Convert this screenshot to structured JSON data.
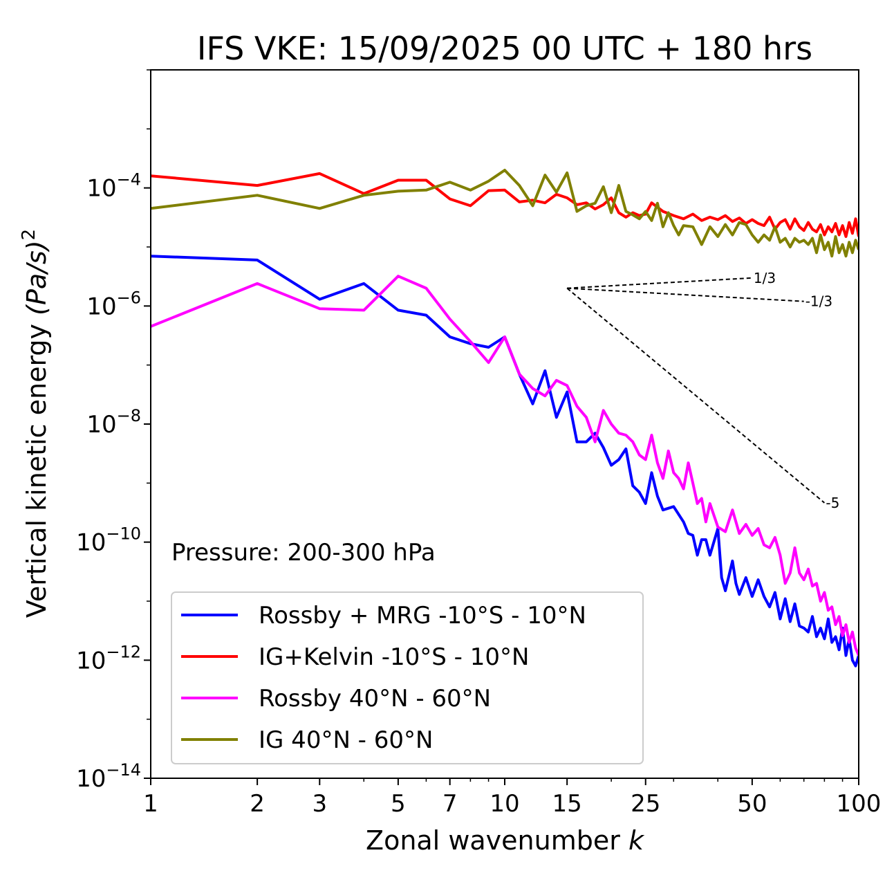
{
  "chart_data": {
    "type": "line",
    "title": "IFS VKE: 15/09/2025 00 UTC + 180 hrs",
    "xlabel_text": "Zonal wavenumber",
    "xlabel_var": "k",
    "ylabel_text": "Vertical kinetic energy",
    "ylabel_units": "(Pa/s)",
    "ylabel_exp": "2",
    "x_scale": "log",
    "y_scale": "log",
    "xlim": [
      1,
      100
    ],
    "ylim": [
      1e-14,
      0.01
    ],
    "x_ticks": [
      1,
      2,
      3,
      5,
      7,
      10,
      15,
      25,
      50,
      100
    ],
    "x_tick_labels": [
      "1",
      "2",
      "3",
      "5",
      "7",
      "10",
      "15",
      "25",
      "50",
      "100"
    ],
    "y_ticks": [
      {
        "value": 0.0001,
        "base": "10",
        "exp": "−4"
      },
      {
        "value": 1e-06,
        "base": "10",
        "exp": "−6"
      },
      {
        "value": 1e-08,
        "base": "10",
        "exp": "−8"
      },
      {
        "value": 1e-10,
        "base": "10",
        "exp": "−10"
      },
      {
        "value": 1e-12,
        "base": "10",
        "exp": "−12"
      },
      {
        "value": 1e-14,
        "base": "10",
        "exp": "−14"
      }
    ],
    "annotation": "Pressure: 200-300 hPa",
    "legend_position": "lower-left",
    "series": [
      {
        "name": "Rossby + MRG -10°S - 10°N",
        "color": "#0000ff",
        "points": [
          [
            1,
            7e-06
          ],
          [
            2,
            6e-06
          ],
          [
            3,
            1.3e-06
          ],
          [
            4,
            2.4e-06
          ],
          [
            5,
            8.5e-07
          ],
          [
            6,
            7e-07
          ],
          [
            7,
            3e-07
          ],
          [
            8,
            2.3e-07
          ],
          [
            9,
            2e-07
          ],
          [
            10,
            3e-07
          ],
          [
            11,
            7e-08
          ],
          [
            12,
            2.2e-08
          ],
          [
            13,
            8e-08
          ],
          [
            14,
            1.3e-08
          ],
          [
            15,
            3.5e-08
          ],
          [
            16,
            5e-09
          ],
          [
            17,
            5e-09
          ],
          [
            18,
            7e-09
          ],
          [
            19,
            4e-09
          ],
          [
            20,
            2e-09
          ],
          [
            21,
            2.5e-09
          ],
          [
            22,
            3.8e-09
          ],
          [
            23,
            9e-10
          ],
          [
            24,
            7e-10
          ],
          [
            25,
            4.5e-10
          ],
          [
            26,
            1.5e-09
          ],
          [
            27,
            6e-10
          ],
          [
            28,
            3.5e-10
          ],
          [
            30,
            4e-10
          ],
          [
            32,
            2.2e-10
          ],
          [
            33,
            1.4e-10
          ],
          [
            34,
            1.3e-10
          ],
          [
            35,
            6e-11
          ],
          [
            36,
            1.1e-10
          ],
          [
            37,
            1.1e-10
          ],
          [
            38,
            6e-11
          ],
          [
            40,
            1.7e-10
          ],
          [
            41,
            2.5e-11
          ],
          [
            42,
            1.5e-11
          ],
          [
            44,
            4.8e-11
          ],
          [
            45,
            2e-11
          ],
          [
            46,
            1.3e-11
          ],
          [
            48,
            2.5e-11
          ],
          [
            50,
            1.2e-11
          ],
          [
            52,
            2.3e-11
          ],
          [
            54,
            1.2e-11
          ],
          [
            56,
            8e-12
          ],
          [
            58,
            1.4e-11
          ],
          [
            60,
            5e-12
          ],
          [
            62,
            1.1e-11
          ],
          [
            64,
            4.5e-12
          ],
          [
            66,
            9e-12
          ],
          [
            68,
            3.8e-12
          ],
          [
            70,
            3.5e-12
          ],
          [
            72,
            3e-12
          ],
          [
            74,
            5.5e-12
          ],
          [
            76,
            2.5e-12
          ],
          [
            78,
            3.5e-12
          ],
          [
            80,
            2.3e-12
          ],
          [
            82,
            5e-12
          ],
          [
            84,
            2e-12
          ],
          [
            86,
            2.5e-12
          ],
          [
            88,
            1.5e-12
          ],
          [
            90,
            3.5e-12
          ],
          [
            92,
            1.2e-12
          ],
          [
            94,
            2.3e-12
          ],
          [
            96,
            1e-12
          ],
          [
            98,
            8e-13
          ],
          [
            100,
            1.2e-12
          ]
        ]
      },
      {
        "name": "IG+Kelvin -10°S - 10°N",
        "color": "#ff0000",
        "points": [
          [
            1,
            0.00016
          ],
          [
            2,
            0.00011
          ],
          [
            3,
            0.000175
          ],
          [
            4,
            8e-05
          ],
          [
            5,
            0.000135
          ],
          [
            6,
            0.000135
          ],
          [
            7,
            6.5e-05
          ],
          [
            8,
            5e-05
          ],
          [
            9,
            9e-05
          ],
          [
            10,
            9.2e-05
          ],
          [
            11,
            5.8e-05
          ],
          [
            12,
            6.2e-05
          ],
          [
            13,
            5.6e-05
          ],
          [
            14,
            7.8e-05
          ],
          [
            15,
            6.8e-05
          ],
          [
            16,
            5.2e-05
          ],
          [
            17,
            5.6e-05
          ],
          [
            18,
            4.4e-05
          ],
          [
            19,
            5.2e-05
          ],
          [
            20,
            6.8e-05
          ],
          [
            21,
            3.8e-05
          ],
          [
            22,
            3.2e-05
          ],
          [
            23,
            3.8e-05
          ],
          [
            24,
            3.4e-05
          ],
          [
            25,
            3.6e-05
          ],
          [
            26,
            5.6e-05
          ],
          [
            28,
            4e-05
          ],
          [
            30,
            3.4e-05
          ],
          [
            32,
            3e-05
          ],
          [
            34,
            3.6e-05
          ],
          [
            36,
            2.8e-05
          ],
          [
            38,
            3.2e-05
          ],
          [
            40,
            2.9e-05
          ],
          [
            42,
            3.4e-05
          ],
          [
            44,
            2.7e-05
          ],
          [
            46,
            3.1e-05
          ],
          [
            48,
            2.5e-05
          ],
          [
            50,
            2.9e-05
          ],
          [
            52,
            2.5e-05
          ],
          [
            54,
            2.3e-05
          ],
          [
            56,
            3.2e-05
          ],
          [
            58,
            2e-05
          ],
          [
            60,
            2.6e-05
          ],
          [
            62,
            2.9e-05
          ],
          [
            64,
            2e-05
          ],
          [
            66,
            3e-05
          ],
          [
            68,
            2.2e-05
          ],
          [
            70,
            1.9e-05
          ],
          [
            72,
            2.6e-05
          ],
          [
            74,
            2e-05
          ],
          [
            76,
            1.8e-05
          ],
          [
            78,
            2.4e-05
          ],
          [
            80,
            1.6e-05
          ],
          [
            82,
            2.2e-05
          ],
          [
            84,
            1.8e-05
          ],
          [
            86,
            2.5e-05
          ],
          [
            88,
            1.6e-05
          ],
          [
            90,
            2.3e-05
          ],
          [
            92,
            1.5e-05
          ],
          [
            94,
            2.6e-05
          ],
          [
            96,
            1.7e-05
          ],
          [
            98,
            3e-05
          ],
          [
            100,
            1.5e-05
          ]
        ]
      },
      {
        "name": "Rossby 40°N - 60°N",
        "color": "#ff00ff",
        "points": [
          [
            1,
            4.5e-07
          ],
          [
            2,
            2.4e-06
          ],
          [
            3,
            9e-07
          ],
          [
            4,
            8.5e-07
          ],
          [
            5,
            3.2e-06
          ],
          [
            6,
            2e-06
          ],
          [
            7,
            6e-07
          ],
          [
            8,
            2.5e-07
          ],
          [
            9,
            1.1e-07
          ],
          [
            10,
            3e-07
          ],
          [
            11,
            7e-08
          ],
          [
            12,
            4e-08
          ],
          [
            13,
            3e-08
          ],
          [
            14,
            5.5e-08
          ],
          [
            15,
            4.5e-08
          ],
          [
            16,
            2e-08
          ],
          [
            17,
            1.3e-08
          ],
          [
            18,
            5e-09
          ],
          [
            19,
            1.7e-08
          ],
          [
            20,
            1e-08
          ],
          [
            21,
            7e-09
          ],
          [
            22,
            6.5e-09
          ],
          [
            23,
            5e-09
          ],
          [
            24,
            3e-09
          ],
          [
            25,
            2.5e-09
          ],
          [
            26,
            6.5e-09
          ],
          [
            27,
            2.2e-09
          ],
          [
            28,
            1.2e-09
          ],
          [
            29,
            3.5e-09
          ],
          [
            30,
            1.5e-09
          ],
          [
            31,
            1.2e-09
          ],
          [
            32,
            8e-10
          ],
          [
            33,
            2.2e-09
          ],
          [
            34,
            1e-09
          ],
          [
            35,
            4.5e-10
          ],
          [
            36,
            5.5e-10
          ],
          [
            37,
            2.2e-10
          ],
          [
            38,
            4.5e-10
          ],
          [
            40,
            1.8e-10
          ],
          [
            42,
            1.5e-10
          ],
          [
            44,
            3.5e-10
          ],
          [
            46,
            1.4e-10
          ],
          [
            48,
            2e-10
          ],
          [
            50,
            1.3e-10
          ],
          [
            52,
            1.7e-10
          ],
          [
            54,
            9e-11
          ],
          [
            56,
            8e-11
          ],
          [
            58,
            1.2e-10
          ],
          [
            60,
            6e-11
          ],
          [
            62,
            2e-11
          ],
          [
            64,
            3e-11
          ],
          [
            66,
            8e-11
          ],
          [
            68,
            3e-11
          ],
          [
            70,
            2.3e-11
          ],
          [
            72,
            3.5e-11
          ],
          [
            74,
            1.8e-11
          ],
          [
            76,
            2e-11
          ],
          [
            78,
            1e-11
          ],
          [
            80,
            1.4e-11
          ],
          [
            82,
            7e-12
          ],
          [
            84,
            8e-12
          ],
          [
            86,
            4e-12
          ],
          [
            88,
            5.5e-12
          ],
          [
            90,
            2.6e-12
          ],
          [
            92,
            4e-12
          ],
          [
            94,
            2e-12
          ],
          [
            96,
            3e-12
          ],
          [
            98,
            1.6e-12
          ],
          [
            100,
            1.2e-12
          ]
        ]
      },
      {
        "name": "IG 40°N - 60°N",
        "color": "#808000",
        "points": [
          [
            1,
            4.5e-05
          ],
          [
            2,
            7.5e-05
          ],
          [
            3,
            4.5e-05
          ],
          [
            4,
            7.5e-05
          ],
          [
            5,
            8.8e-05
          ],
          [
            6,
            9.2e-05
          ],
          [
            7,
            0.000125
          ],
          [
            8,
            9.2e-05
          ],
          [
            9,
            0.00013
          ],
          [
            10,
            0.0002
          ],
          [
            11,
            0.00011
          ],
          [
            12,
            5e-05
          ],
          [
            13,
            0.000165
          ],
          [
            14,
            8.5e-05
          ],
          [
            15,
            0.00018
          ],
          [
            16,
            4e-05
          ],
          [
            17,
            5e-05
          ],
          [
            18,
            5.5e-05
          ],
          [
            19,
            0.000105
          ],
          [
            20,
            3.8e-05
          ],
          [
            21,
            0.00011
          ],
          [
            22,
            4e-05
          ],
          [
            23,
            3.5e-05
          ],
          [
            24,
            3e-05
          ],
          [
            25,
            4e-05
          ],
          [
            26,
            2.8e-05
          ],
          [
            27,
            5.5e-05
          ],
          [
            28,
            2.2e-05
          ],
          [
            29,
            3.8e-05
          ],
          [
            30,
            2.3e-05
          ],
          [
            31,
            1.6e-05
          ],
          [
            32,
            2.3e-05
          ],
          [
            34,
            2.2e-05
          ],
          [
            36,
            1.1e-05
          ],
          [
            38,
            2.2e-05
          ],
          [
            40,
            1.5e-05
          ],
          [
            42,
            2.4e-05
          ],
          [
            44,
            1.6e-05
          ],
          [
            46,
            2.6e-05
          ],
          [
            48,
            2.4e-05
          ],
          [
            50,
            1.6e-05
          ],
          [
            52,
            1.2e-05
          ],
          [
            54,
            1.6e-05
          ],
          [
            56,
            1.3e-05
          ],
          [
            58,
            2.2e-05
          ],
          [
            60,
            1.2e-05
          ],
          [
            62,
            1.4e-05
          ],
          [
            64,
            1e-05
          ],
          [
            66,
            1.4e-05
          ],
          [
            68,
            1.2e-05
          ],
          [
            70,
            1.3e-05
          ],
          [
            72,
            1.1e-05
          ],
          [
            74,
            1.4e-05
          ],
          [
            76,
            8e-06
          ],
          [
            78,
            1.6e-05
          ],
          [
            80,
            9e-06
          ],
          [
            82,
            1.2e-05
          ],
          [
            84,
            7e-06
          ],
          [
            86,
            1.5e-05
          ],
          [
            88,
            8e-06
          ],
          [
            90,
            1.1e-05
          ],
          [
            92,
            7e-06
          ],
          [
            94,
            1.2e-05
          ],
          [
            96,
            8e-06
          ],
          [
            98,
            1.3e-05
          ],
          [
            100,
            9e-06
          ]
        ]
      }
    ],
    "slope_guides": [
      {
        "label": "1/3",
        "slope": 0.3333,
        "x0": 15,
        "y0": 2e-06,
        "x1": 50
      },
      {
        "label": "-1/3",
        "slope": -0.3333,
        "x0": 15,
        "y0": 2e-06,
        "x1": 70
      },
      {
        "label": "-5",
        "slope": -5,
        "x0": 15,
        "y0": 2e-06,
        "x1": 80
      }
    ]
  }
}
